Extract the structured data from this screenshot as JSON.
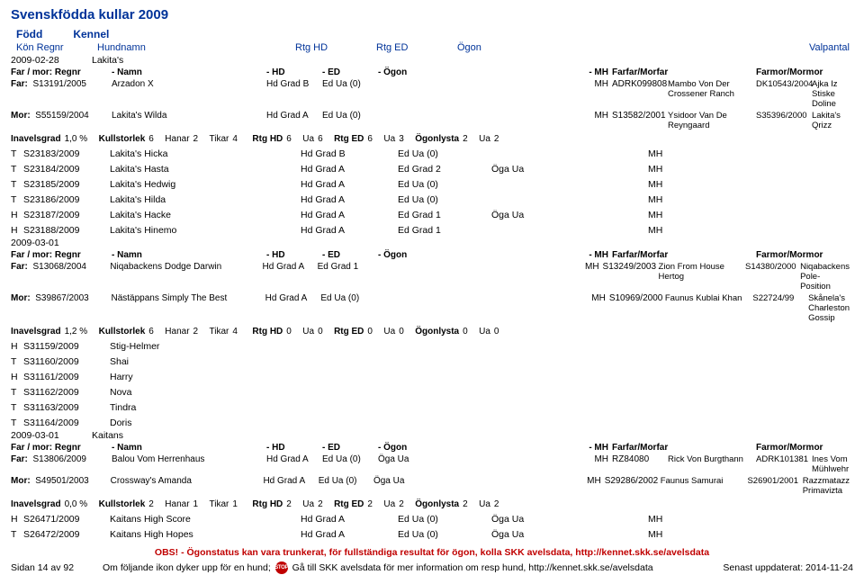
{
  "page": {
    "title": "Svenskfödda kullar 2009",
    "subhead_fodd": "Född",
    "subhead_kennel": "Kennel",
    "cols": {
      "kon_regnr": "Kön Regnr",
      "hundnamn": "Hundnamn",
      "rtg_hd": "Rtg HD",
      "rtg_ed": "Rtg ED",
      "ogon": "Ögon",
      "valpantal": "Valpantal"
    }
  },
  "litters": [
    {
      "date": "2009-02-28",
      "kennel": "Lakita's",
      "parents_head": {
        "regnr": "Far / mor: Regnr",
        "namn": "- Namn",
        "hd": "- HD",
        "ed": "- ED",
        "ogon": "- Ögon",
        "mh": "- MH",
        "ff": "Farfar/Morfar",
        "fm": "Farmor/Mormor"
      },
      "far": {
        "lbl": "Far:",
        "reg": "S13191/2005",
        "name": "Arzadon X",
        "hd": "Hd Grad B",
        "ed": "Ed Ua (0)",
        "ogon": "",
        "mh": "MH",
        "ff_id": "ADRK099808",
        "ff_name": "Mambo Von Der Crossener Ranch",
        "fm_id": "DK10543/2004",
        "fm_name": "Ajka Iz Stiske Doline"
      },
      "mor": {
        "lbl": "Mor:",
        "reg": "S55159/2004",
        "name": "Lakita's Wilda",
        "hd": "Hd Grad A",
        "ed": "Ed Ua (0)",
        "ogon": "",
        "mh": "MH",
        "ff_id": "S13582/2001",
        "ff_name": "Ysidoor Van De Reyngaard",
        "fm_id": "S35396/2000",
        "fm_name": "Lakita's Qrizz"
      },
      "inavel": {
        "inavels_lbl": "Inavelsgrad",
        "inavels_val": "1,0 %",
        "kull_lbl": "Kullstorlek",
        "kull_val": "6",
        "hanar_lbl": "Hanar",
        "hanar_val": "2",
        "tikar_lbl": "Tikar",
        "tikar_val": "4",
        "rtghd_lbl": "Rtg HD",
        "rtghd_val": "6",
        "ua1_lbl": "Ua",
        "ua1_val": "6",
        "rtged_lbl": "Rtg ED",
        "rtged_val": "6",
        "ua2_lbl": "Ua",
        "ua2_val": "3",
        "ogon_lbl": "Ögonlysta",
        "ogon_val": "2",
        "ua3_lbl": "Ua",
        "ua3_val": "2"
      },
      "dogs": [
        {
          "sex": "T",
          "reg": "S23183/2009",
          "name": "Lakita's Hicka",
          "hd": "Hd Grad B",
          "ed": "Ed Ua (0)",
          "ogon": "",
          "mh": "MH"
        },
        {
          "sex": "T",
          "reg": "S23184/2009",
          "name": "Lakita's Hasta",
          "hd": "Hd Grad A",
          "ed": "Ed Grad 2",
          "ogon": "Öga Ua",
          "mh": "MH"
        },
        {
          "sex": "T",
          "reg": "S23185/2009",
          "name": "Lakita's Hedwig",
          "hd": "Hd Grad A",
          "ed": "Ed Ua (0)",
          "ogon": "",
          "mh": "MH"
        },
        {
          "sex": "T",
          "reg": "S23186/2009",
          "name": "Lakita's Hilda",
          "hd": "Hd Grad A",
          "ed": "Ed Ua (0)",
          "ogon": "",
          "mh": "MH"
        },
        {
          "sex": "H",
          "reg": "S23187/2009",
          "name": "Lakita's Hacke",
          "hd": "Hd Grad A",
          "ed": "Ed Grad 1",
          "ogon": "Öga Ua",
          "mh": "MH"
        },
        {
          "sex": "H",
          "reg": "S23188/2009",
          "name": "Lakita's Hinemo",
          "hd": "Hd Grad A",
          "ed": "Ed Grad 1",
          "ogon": "",
          "mh": "MH"
        }
      ]
    },
    {
      "date": "2009-03-01",
      "kennel": "",
      "parents_head": {
        "regnr": "Far / mor: Regnr",
        "namn": "- Namn",
        "hd": "- HD",
        "ed": "- ED",
        "ogon": "- Ögon",
        "mh": "- MH",
        "ff": "Farfar/Morfar",
        "fm": "Farmor/Mormor"
      },
      "far": {
        "lbl": "Far:",
        "reg": "S13068/2004",
        "name": "Niqabackens Dodge Darwin",
        "hd": "Hd Grad A",
        "ed": "Ed Grad 1",
        "ogon": "",
        "mh": "MH",
        "ff_id": "S13249/2003",
        "ff_name": "Zion From House Hertog",
        "fm_id": "S14380/2000",
        "fm_name": "Niqabackens Pole-Position"
      },
      "mor": {
        "lbl": "Mor:",
        "reg": "S39867/2003",
        "name": "Nästäppans Simply The Best",
        "hd": "Hd Grad A",
        "ed": "Ed Ua (0)",
        "ogon": "",
        "mh": "MH",
        "ff_id": "S10969/2000",
        "ff_name": "Faunus Kublai Khan",
        "fm_id": "S22724/99",
        "fm_name": "Skånela's Charleston Gossip"
      },
      "inavel": {
        "inavels_lbl": "Inavelsgrad",
        "inavels_val": "1,2 %",
        "kull_lbl": "Kullstorlek",
        "kull_val": "6",
        "hanar_lbl": "Hanar",
        "hanar_val": "2",
        "tikar_lbl": "Tikar",
        "tikar_val": "4",
        "rtghd_lbl": "Rtg HD",
        "rtghd_val": "0",
        "ua1_lbl": "Ua",
        "ua1_val": "0",
        "rtged_lbl": "Rtg ED",
        "rtged_val": "0",
        "ua2_lbl": "Ua",
        "ua2_val": "0",
        "ogon_lbl": "Ögonlysta",
        "ogon_val": "0",
        "ua3_lbl": "Ua",
        "ua3_val": "0"
      },
      "dogs": [
        {
          "sex": "H",
          "reg": "S31159/2009",
          "name": "Stig-Helmer",
          "hd": "",
          "ed": "",
          "ogon": "",
          "mh": ""
        },
        {
          "sex": "T",
          "reg": "S31160/2009",
          "name": "Shai",
          "hd": "",
          "ed": "",
          "ogon": "",
          "mh": ""
        },
        {
          "sex": "H",
          "reg": "S31161/2009",
          "name": "Harry",
          "hd": "",
          "ed": "",
          "ogon": "",
          "mh": ""
        },
        {
          "sex": "T",
          "reg": "S31162/2009",
          "name": "Nova",
          "hd": "",
          "ed": "",
          "ogon": "",
          "mh": ""
        },
        {
          "sex": "T",
          "reg": "S31163/2009",
          "name": "Tindra",
          "hd": "",
          "ed": "",
          "ogon": "",
          "mh": ""
        },
        {
          "sex": "T",
          "reg": "S31164/2009",
          "name": "Doris",
          "hd": "",
          "ed": "",
          "ogon": "",
          "mh": ""
        }
      ]
    },
    {
      "date": "2009-03-01",
      "kennel": "Kaitans",
      "parents_head": {
        "regnr": "Far / mor: Regnr",
        "namn": "- Namn",
        "hd": "- HD",
        "ed": "- ED",
        "ogon": "- Ögon",
        "mh": "- MH",
        "ff": "Farfar/Morfar",
        "fm": "Farmor/Mormor"
      },
      "far": {
        "lbl": "Far:",
        "reg": "S13806/2009",
        "name": "Balou Vom Herrenhaus",
        "hd": "Hd Grad A",
        "ed": "Ed Ua (0)",
        "ogon": "Öga Ua",
        "mh": "MH",
        "ff_id": "RZ84080",
        "ff_name": "Rick Von Burgthann",
        "fm_id": "ADRK101381",
        "fm_name": "Ines Vom Mühlwehr"
      },
      "mor": {
        "lbl": "Mor:",
        "reg": "S49501/2003",
        "name": "Crossway's Amanda",
        "hd": "Hd Grad A",
        "ed": "Ed Ua (0)",
        "ogon": "Öga Ua",
        "mh": "MH",
        "ff_id": "S29286/2002",
        "ff_name": "Faunus Samurai",
        "fm_id": "S26901/2001",
        "fm_name": "Razzmatazz Primavizta"
      },
      "inavel": {
        "inavels_lbl": "Inavelsgrad",
        "inavels_val": "0,0 %",
        "kull_lbl": "Kullstorlek",
        "kull_val": "2",
        "hanar_lbl": "Hanar",
        "hanar_val": "1",
        "tikar_lbl": "Tikar",
        "tikar_val": "1",
        "rtghd_lbl": "Rtg HD",
        "rtghd_val": "2",
        "ua1_lbl": "Ua",
        "ua1_val": "2",
        "rtged_lbl": "Rtg ED",
        "rtged_val": "2",
        "ua2_lbl": "Ua",
        "ua2_val": "2",
        "ogon_lbl": "Ögonlysta",
        "ogon_val": "2",
        "ua3_lbl": "Ua",
        "ua3_val": "2"
      },
      "dogs": [
        {
          "sex": "H",
          "reg": "S26471/2009",
          "name": "Kaitans High Score",
          "hd": "Hd Grad A",
          "ed": "Ed Ua (0)",
          "ogon": "Öga Ua",
          "mh": "MH"
        },
        {
          "sex": "T",
          "reg": "S26472/2009",
          "name": "Kaitans High Hopes",
          "hd": "Hd Grad A",
          "ed": "Ed Ua (0)",
          "ogon": "Öga Ua",
          "mh": "MH"
        }
      ]
    }
  ],
  "obs": "OBS! - Ögonstatus kan vara trunkerat, för fullständiga resultat för ögon, kolla SKK avelsdata, http://kennet.skk.se/avelsdata",
  "footer": {
    "page": "Sidan 14 av 92",
    "mid_a": "Om följande ikon dyker upp för en hund;",
    "stop": "STOP",
    "mid_b": "Gå till SKK avelsdata för mer information om resp hund, http://kennet.skk.se/avelsdata",
    "updated": "Senast uppdaterat: 2014-11-24"
  }
}
